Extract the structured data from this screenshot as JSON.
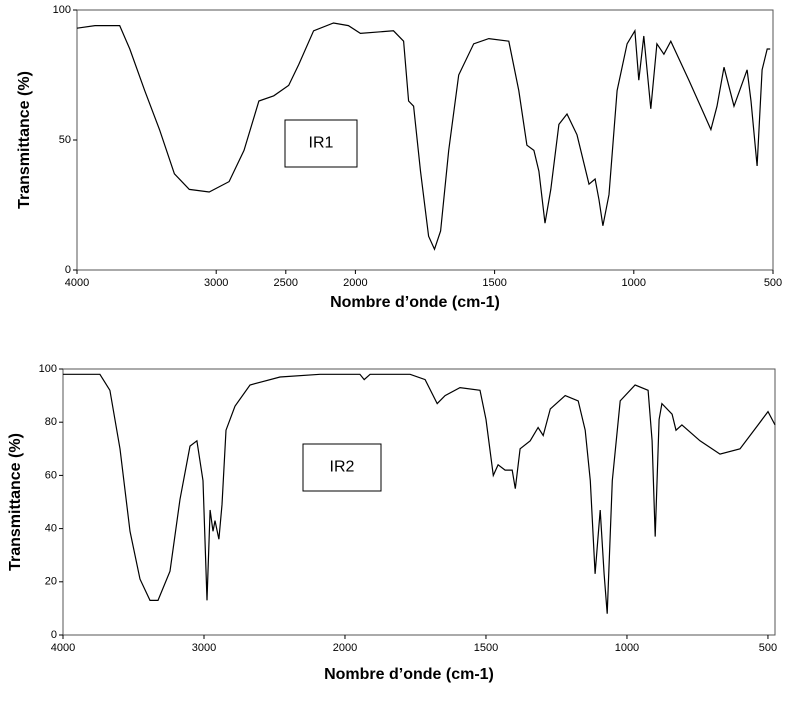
{
  "chart_data": [
    {
      "type": "line",
      "annotation": "IR1",
      "x_label": "Nombre d’onde (cm-1)",
      "y_label": "Transmittance  (%)",
      "xlim": [
        4000,
        500
      ],
      "xsplit": 2000,
      "xticks": [
        4000,
        3000,
        2500,
        2000,
        1500,
        1000,
        500
      ],
      "ylim": [
        0,
        100
      ],
      "yticks": [
        0,
        50,
        100
      ],
      "color": "#000000",
      "x": [
        4000,
        3871,
        3693,
        3621,
        3514,
        3407,
        3300,
        3193,
        3050,
        2907,
        2800,
        2693,
        2586,
        2479,
        2407,
        2300,
        2157,
        2050,
        1982,
        1863,
        1827,
        1809,
        1791,
        1766,
        1737,
        1716,
        1694,
        1665,
        1629,
        1575,
        1521,
        1449,
        1413,
        1384,
        1359,
        1341,
        1319,
        1298,
        1269,
        1240,
        1204,
        1161,
        1139,
        1125,
        1111,
        1089,
        1060,
        1024,
        996,
        982,
        964,
        939,
        917,
        892,
        867,
        802,
        748,
        723,
        701,
        676,
        640,
        593,
        579,
        557,
        539,
        521,
        510
      ],
      "values": [
        93,
        94,
        94,
        85,
        69,
        54,
        37,
        31,
        30,
        34,
        46,
        65,
        67,
        71,
        79,
        92,
        95,
        94,
        91,
        92,
        88,
        65,
        63,
        38,
        13,
        8,
        15,
        46,
        75,
        87,
        89,
        88,
        69,
        48,
        46,
        38,
        18,
        31,
        56,
        60,
        52,
        33,
        35,
        27,
        17,
        29,
        69,
        87,
        92,
        73,
        90,
        62,
        87,
        83,
        88,
        73,
        60,
        54,
        63,
        78,
        63,
        77,
        65,
        40,
        77,
        85,
        85
      ]
    },
    {
      "type": "line",
      "annotation": "IR2",
      "x_label": "Nombre d’onde (cm-1)",
      "y_label": "Transmittance  (%)",
      "xlim": [
        4000,
        475
      ],
      "xsplit": 2000,
      "xticks": [
        4000,
        3000,
        2000,
        1500,
        1000,
        500
      ],
      "ylim": [
        0,
        100
      ],
      "yticks": [
        0,
        20,
        40,
        60,
        80,
        100
      ],
      "color": "#000000",
      "x": [
        4000,
        3738,
        3667,
        3596,
        3525,
        3454,
        3383,
        3326,
        3241,
        3170,
        3099,
        3050,
        3007,
        2979,
        2957,
        2936,
        2922,
        2894,
        2872,
        2844,
        2780,
        2674,
        2461,
        2177,
        2000,
        1947,
        1932,
        1911,
        1769,
        1716,
        1673,
        1645,
        1592,
        1521,
        1500,
        1474,
        1457,
        1432,
        1407,
        1396,
        1379,
        1343,
        1315,
        1297,
        1272,
        1219,
        1173,
        1148,
        1130,
        1113,
        1095,
        1081,
        1070,
        1052,
        1024,
        971,
        925,
        911,
        900,
        886,
        876,
        840,
        826,
        805,
        741,
        670,
        599,
        535,
        500,
        475
      ],
      "values": [
        98,
        98,
        92,
        70,
        39,
        21,
        13,
        13,
        24,
        51,
        71,
        73,
        58,
        13,
        47,
        39,
        43,
        36,
        49,
        77,
        86,
        94,
        97,
        98,
        98,
        98,
        96,
        98,
        98,
        96,
        87,
        90,
        93,
        92,
        81,
        60,
        64,
        62,
        62,
        55,
        70,
        73,
        78,
        75,
        85,
        90,
        88,
        77,
        58,
        23,
        47,
        23,
        8,
        58,
        88,
        94,
        92,
        73,
        37,
        81,
        87,
        83,
        77,
        79,
        73,
        68,
        70,
        79,
        84,
        79
      ]
    }
  ]
}
